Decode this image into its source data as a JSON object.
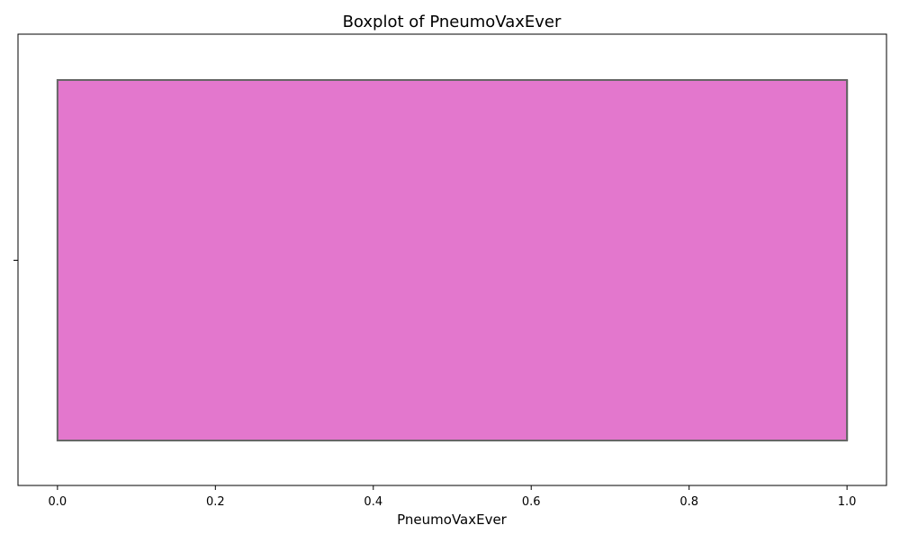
{
  "chart_data": {
    "type": "box",
    "title": "Boxplot of PneumoVaxEver",
    "xlabel": "PneumoVaxEver",
    "ylabel": "",
    "orientation": "horizontal",
    "xlim": [
      -0.05,
      1.05
    ],
    "xticks": [
      0.0,
      0.2,
      0.4,
      0.6,
      0.8,
      1.0
    ],
    "xtick_labels": [
      "0.0",
      "0.2",
      "0.4",
      "0.6",
      "0.8",
      "1.0"
    ],
    "yticks": [
      ""
    ],
    "box": {
      "min": 0.0,
      "q1": 0.0,
      "median": 1.0,
      "q3": 1.0,
      "max": 1.0
    },
    "box_fill_color": "#e377cd",
    "box_edge_color": "#666666",
    "grid": false,
    "legend": "none"
  }
}
